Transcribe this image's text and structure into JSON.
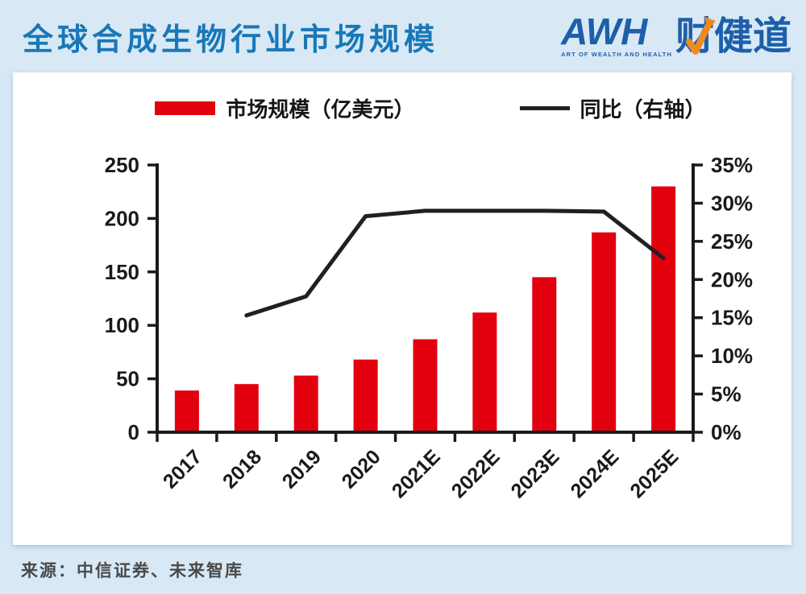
{
  "header": {
    "title": "全球合成生物行业市场规模",
    "logo": {
      "wordmark": "AWH",
      "tagline": "ART OF WEALTH AND HEALTH",
      "cn_name": "财健道"
    }
  },
  "chart_data": {
    "type": "bar",
    "title": "全球合成生物行业市场规模",
    "categories": [
      "2017",
      "2018",
      "2019",
      "2020",
      "2021E",
      "2022E",
      "2023E",
      "2024E",
      "2025E"
    ],
    "series": [
      {
        "name": "市场规模（亿美元）",
        "type": "bar",
        "axis": "left",
        "values": [
          39,
          45,
          53,
          68,
          87,
          112,
          145,
          187,
          230
        ]
      },
      {
        "name": "同比（右轴）",
        "type": "line",
        "axis": "right",
        "unit": "%",
        "values": [
          null,
          15.3,
          17.8,
          28.3,
          29,
          29,
          29,
          28.9,
          22.8
        ]
      }
    ],
    "left_axis": {
      "min": 0,
      "max": 250,
      "step": 50,
      "ticks": [
        "0",
        "50",
        "100",
        "150",
        "200",
        "250"
      ]
    },
    "right_axis": {
      "min": 0,
      "max": 35,
      "step": 5,
      "ticks": [
        "0%",
        "5%",
        "10%",
        "15%",
        "20%",
        "25%",
        "30%",
        "35%"
      ]
    },
    "legend": [
      "市场规模（亿美元）",
      "同比（右轴）"
    ],
    "legend_position": "top",
    "grid": false,
    "x_label_rotation": -45
  },
  "footer": {
    "source": "来源：中信证券、未来智库"
  },
  "colors": {
    "background": "#d8e8f5",
    "panel": "#ffffff",
    "title_blue": "#1878b8",
    "logo_blue": "#1d5fa9",
    "logo_orange": "#f18a1d",
    "bar_red": "#e2000f",
    "line_black": "#231f20",
    "axis_text": "#1a1a1a",
    "source_text": "#4a4a4a"
  }
}
